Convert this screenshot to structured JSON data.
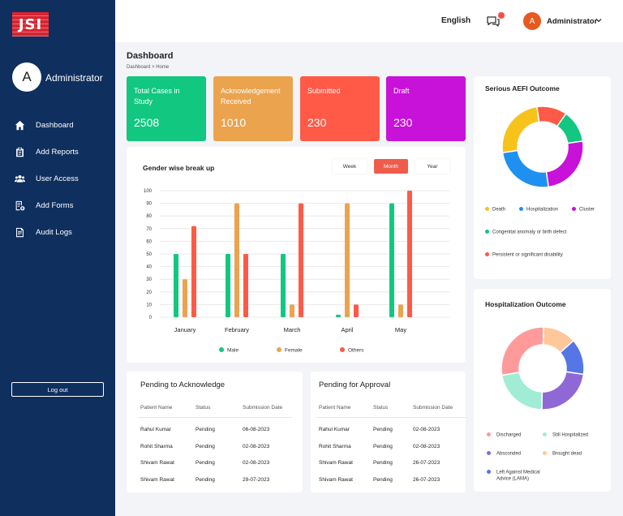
{
  "brand": {
    "logo_text": "JSI"
  },
  "sidebar": {
    "avatar_letter": "A",
    "user_name": "Administrator",
    "items": [
      {
        "label": "Dashboard",
        "icon": "home-icon"
      },
      {
        "label": "Add Reports",
        "icon": "clipboard-icon"
      },
      {
        "label": "User Access",
        "icon": "users-icon"
      },
      {
        "label": "Add Forms",
        "icon": "forms-icon"
      },
      {
        "label": "Audit Logs",
        "icon": "log-icon"
      }
    ],
    "logout_label": "Log out"
  },
  "header": {
    "language": "English",
    "avatar_letter": "A",
    "user_name": "Administrator"
  },
  "page": {
    "title": "Dashboard",
    "breadcrumb": "Dashboard > Home"
  },
  "kpis": [
    {
      "label": "Total Cases in Study",
      "value": "2508",
      "color": "#12c77f"
    },
    {
      "label": "Acknowledgement Received",
      "value": "1010",
      "color": "#eba34e"
    },
    {
      "label": "Submitted",
      "value": "230",
      "color": "#ff5a47"
    },
    {
      "label": "Draft",
      "value": "230",
      "color": "#c811d9"
    }
  ],
  "gender_chart": {
    "title": "Gender wise break up",
    "periods": [
      "Week",
      "Month",
      "Year"
    ],
    "active_period": "Month",
    "chart_data": {
      "type": "bar",
      "categories": [
        "January",
        "February",
        "March",
        "April",
        "May"
      ],
      "series": [
        {
          "name": "Male",
          "values": [
            50,
            50,
            50,
            2,
            90
          ],
          "color": "#12c77f"
        },
        {
          "name": "Female",
          "values": [
            30,
            90,
            10,
            90,
            10
          ],
          "color": "#eba34e"
        },
        {
          "name": "Others",
          "values": [
            72,
            50,
            90,
            10,
            100
          ],
          "color": "#ff5a47"
        }
      ],
      "yticks": [
        "100",
        "90",
        "80",
        "70",
        "60",
        "50",
        "40",
        "30",
        "20",
        "10",
        "0"
      ],
      "ylim": [
        0,
        100
      ],
      "grid": true,
      "legend": "bottom"
    }
  },
  "aefi": {
    "title": "Serious AEFI Outcome",
    "chart_data": {
      "type": "pie",
      "donut": true,
      "slices": [
        {
          "name": "Death",
          "value": 25,
          "color": "#f7c21a"
        },
        {
          "name": "Hospitalization",
          "value": 25,
          "color": "#1e90f0"
        },
        {
          "name": "Cluster",
          "value": 25,
          "color": "#c811d9"
        },
        {
          "name": "Congenital anomaly or birth defect",
          "value": 13,
          "color": "#12c77f"
        },
        {
          "name": "Persistent or significant disability",
          "value": 12,
          "color": "#ff5a47"
        }
      ]
    }
  },
  "hosp": {
    "title": "Hospitalization Outcome",
    "chart_data": {
      "type": "pie",
      "donut": true,
      "slices": [
        {
          "name": "Discharged",
          "value": 28,
          "color": "#ff9a9a"
        },
        {
          "name": "Still Hospitalized",
          "value": 22,
          "color": "#a0ecd4"
        },
        {
          "name": "Absconded",
          "value": 23,
          "color": "#8f68d6"
        },
        {
          "name": "Brought dead",
          "value": 13,
          "color": "#ffc89a"
        },
        {
          "name": "Left Against Medical Advice (LAMA)",
          "value": 14,
          "color": "#5676e6"
        }
      ]
    }
  },
  "pending_ack": {
    "title": "Pending to Acknowledge",
    "columns": [
      "Patient Name",
      "Status",
      "Submission Date"
    ],
    "rows": [
      [
        "Rahul Kumar",
        "Pending",
        "06-08-2023"
      ],
      [
        "Rohit Sharma",
        "Pending",
        "02-08-2023"
      ],
      [
        "Shivam Rawat",
        "Pending",
        "02-08-2023"
      ],
      [
        "Shivam Rawat",
        "Pending",
        "29-07-2023"
      ]
    ]
  },
  "pending_approval": {
    "title": "Pending for Approval",
    "columns": [
      "Patient Name",
      "Status",
      "Submission Date"
    ],
    "rows": [
      [
        "Rahul Kumar",
        "Pending",
        "02-08-2023"
      ],
      [
        "Rohit Sharma",
        "Pending",
        "02-08-2023"
      ],
      [
        "Shivam Rawat",
        "Pending",
        "26-07-2023"
      ],
      [
        "Shivam Rawat",
        "Pending",
        "26-07-2023"
      ]
    ]
  }
}
